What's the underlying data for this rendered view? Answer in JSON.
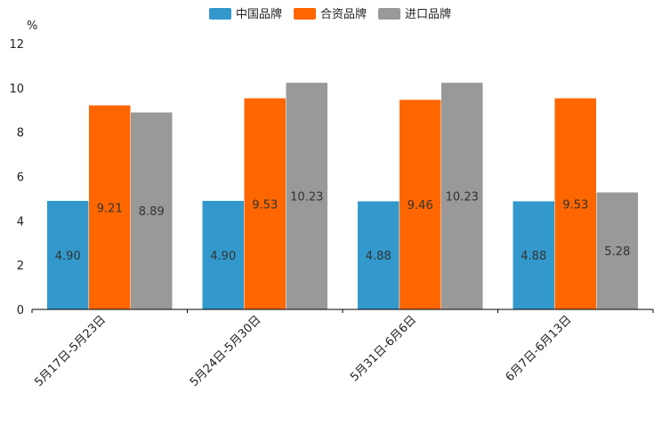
{
  "chart_data": {
    "type": "bar",
    "title": "",
    "xlabel": "",
    "ylabel": "%",
    "ylim": [
      0,
      12
    ],
    "yticks": [
      0,
      2,
      4,
      6,
      8,
      10,
      12
    ],
    "grid": false,
    "legend_position": "top",
    "categories": [
      "5月17日-5月23日",
      "5月24日-5月30日",
      "5月31日-6月6日",
      "6月7日-6月13日"
    ],
    "series": [
      {
        "name": "中国品牌",
        "color": "#3399CC",
        "values": [
          4.9,
          4.9,
          4.88,
          4.88
        ],
        "labels": [
          "4.90",
          "4.90",
          "4.88",
          "4.88"
        ]
      },
      {
        "name": "合资品牌",
        "color": "#FF6600",
        "values": [
          9.21,
          9.53,
          9.46,
          9.53
        ],
        "labels": [
          "9.21",
          "9.53",
          "9.46",
          "9.53"
        ]
      },
      {
        "name": "进口品牌",
        "color": "#999999",
        "values": [
          8.89,
          10.23,
          10.23,
          5.28
        ],
        "labels": [
          "8.89",
          "10.23",
          "10.23",
          "5.28"
        ]
      }
    ]
  }
}
